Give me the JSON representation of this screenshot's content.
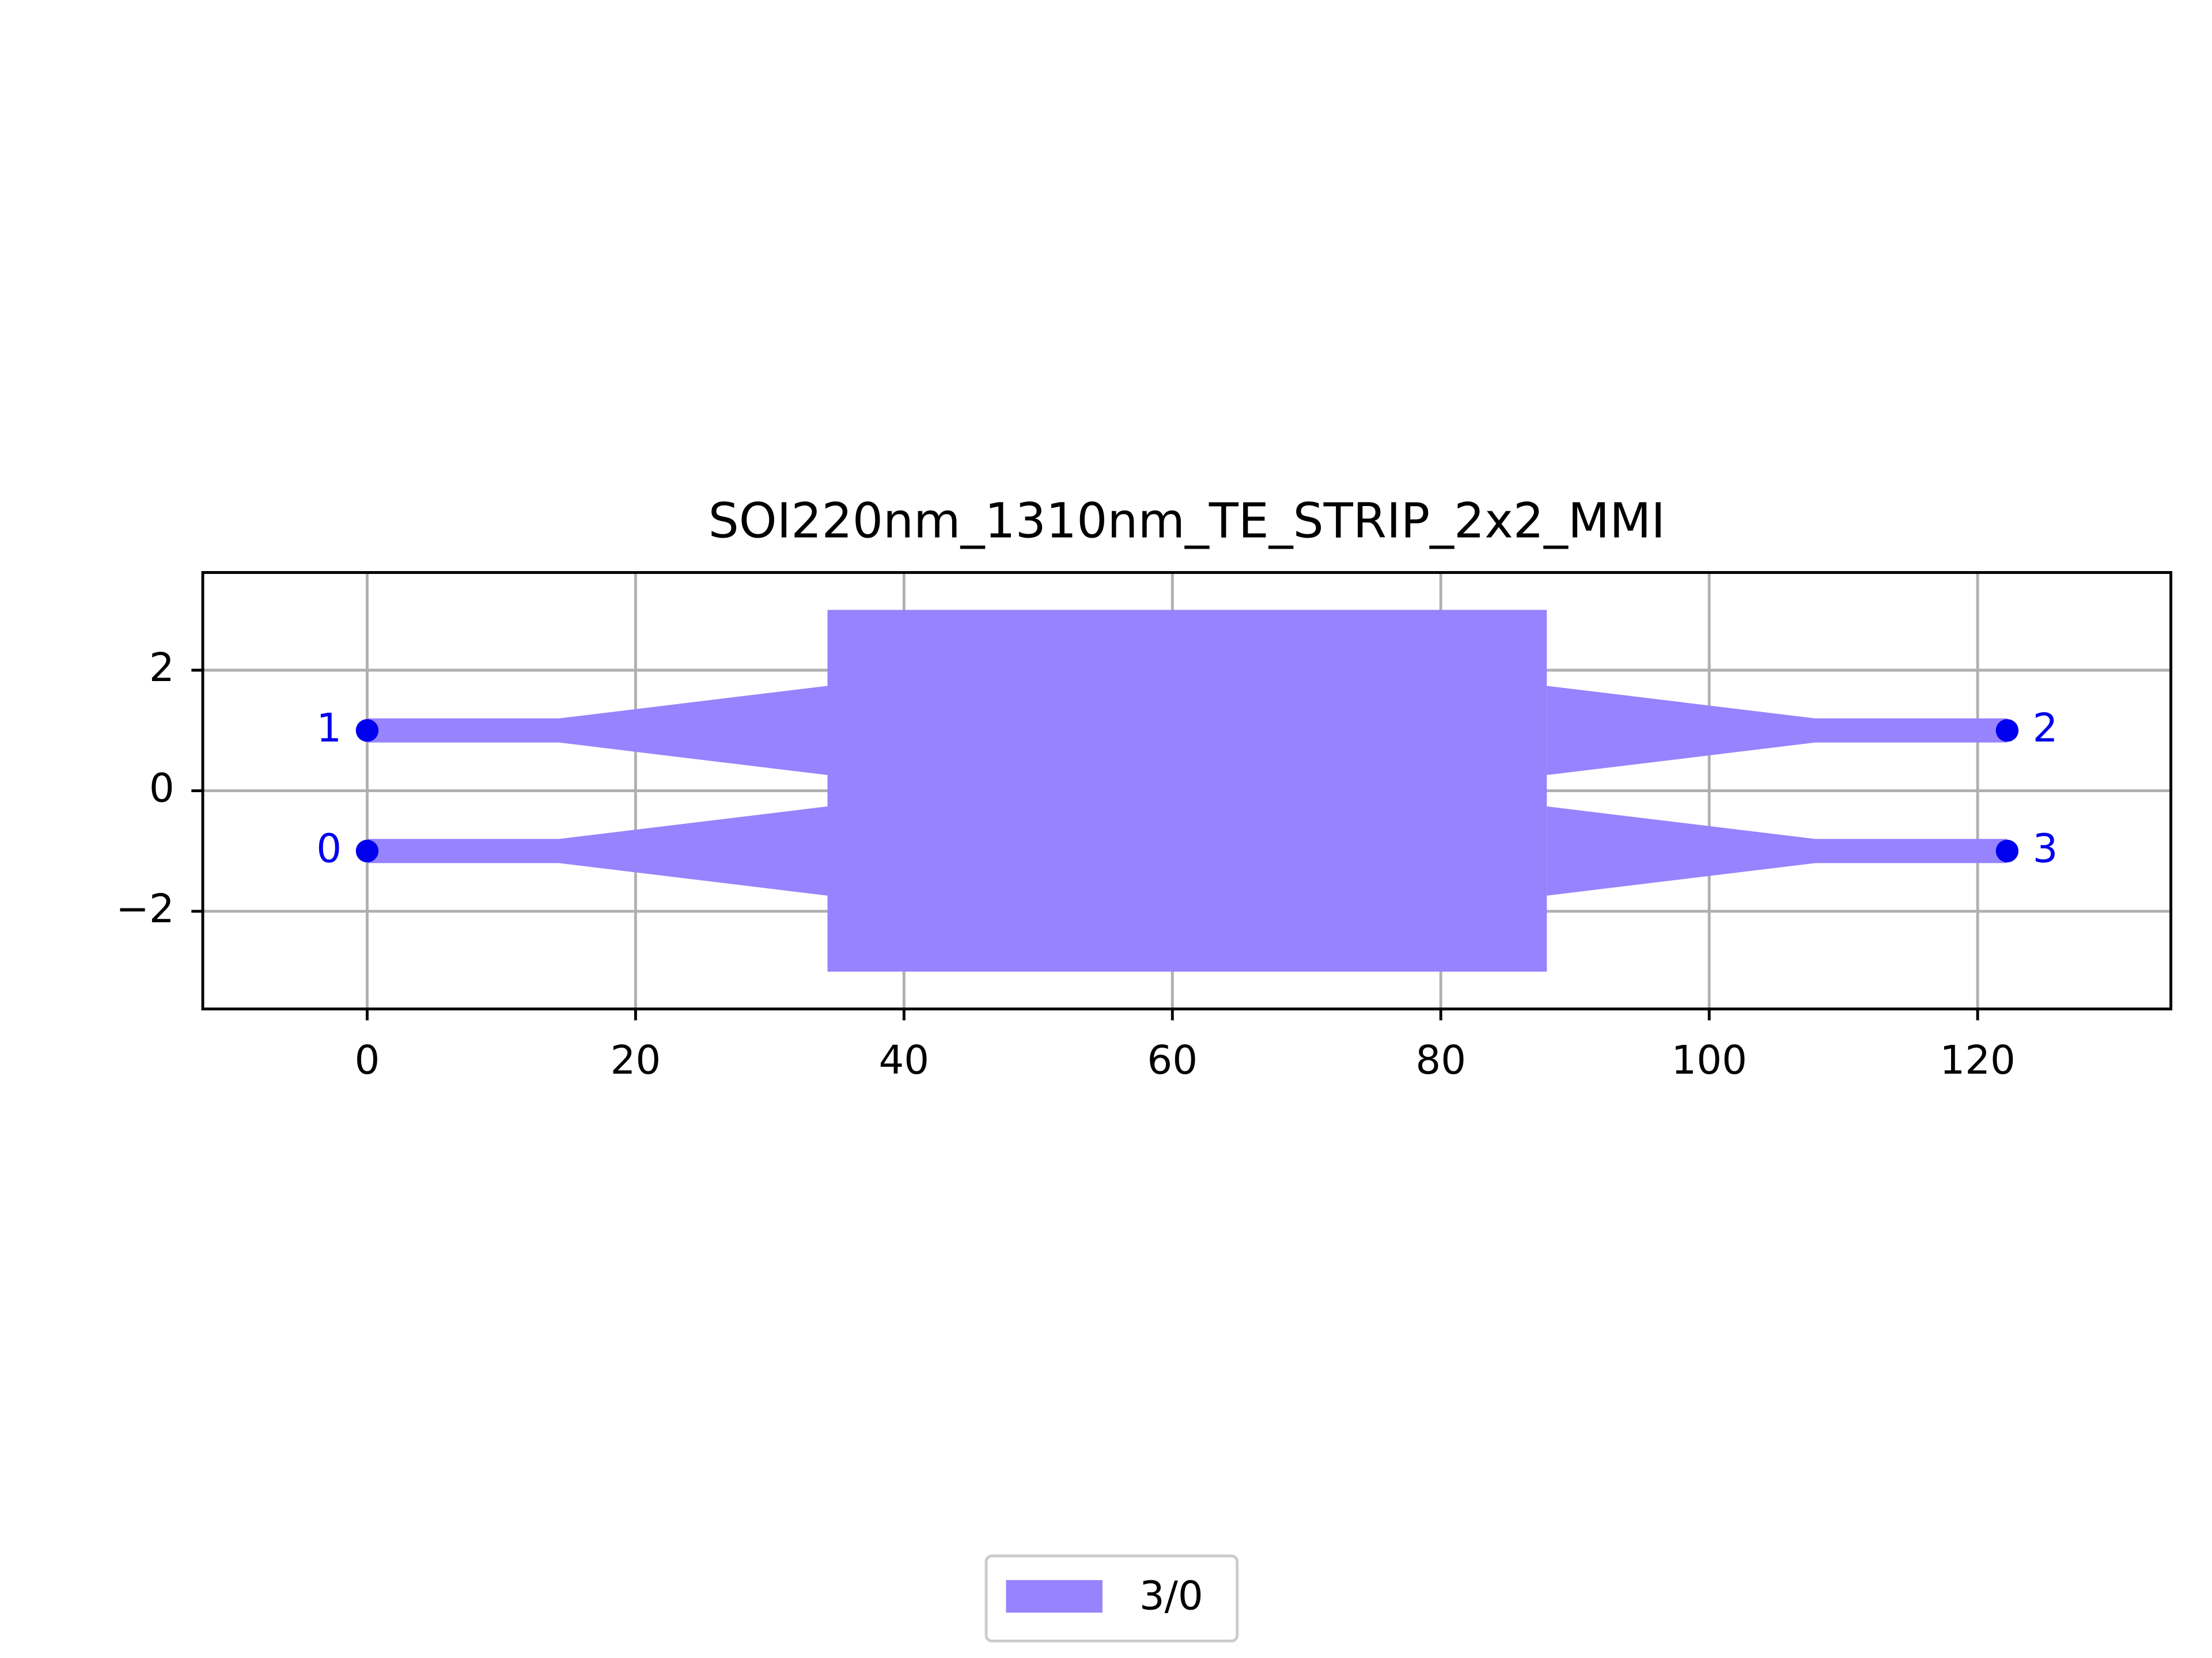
{
  "chart_data": {
    "type": "layout",
    "title": "SOI220nm_1310nm_TE_STRIP_2x2_MMI",
    "xlim": [
      -12.25,
      134.4
    ],
    "ylim": [
      -3.62,
      3.62
    ],
    "xticks": [
      0,
      20,
      40,
      60,
      80,
      100,
      120
    ],
    "yticks": [
      {
        "value": -2,
        "label": "−2"
      },
      0,
      2
    ],
    "grid": true,
    "series": [
      {
        "name": "3/0",
        "color": "#9683fd",
        "polygons": [
          {
            "x": [
              34.3,
              87.9,
              87.9,
              34.3
            ],
            "y": [
              3.0,
              3.0,
              -3.0,
              -3.0
            ]
          },
          {
            "x": [
              0,
              14.3,
              34.3,
              34.3,
              14.3,
              0
            ],
            "y": [
              0.8,
              0.8,
              0.26,
              1.74,
              1.2,
              1.2
            ]
          },
          {
            "x": [
              0,
              14.3,
              34.3,
              34.3,
              14.3,
              0
            ],
            "y": [
              -1.2,
              -1.2,
              -1.74,
              -0.26,
              -0.8,
              -0.8
            ]
          },
          {
            "x": [
              87.9,
              107.9,
              122.2,
              122.2,
              107.9,
              87.9
            ],
            "y": [
              0.26,
              0.8,
              0.8,
              1.2,
              1.2,
              1.74
            ]
          },
          {
            "x": [
              87.9,
              107.9,
              122.2,
              122.2,
              107.9,
              87.9
            ],
            "y": [
              -1.74,
              -1.2,
              -1.2,
              -0.8,
              -0.8,
              -0.26
            ]
          }
        ]
      }
    ],
    "ports": {
      "color": "#0000ee",
      "names": [
        "0",
        "1",
        "2",
        "3"
      ],
      "x": [
        0,
        0,
        122.2,
        122.2
      ],
      "y": [
        -1,
        1,
        1,
        -1
      ]
    },
    "legend": "bottom center"
  }
}
